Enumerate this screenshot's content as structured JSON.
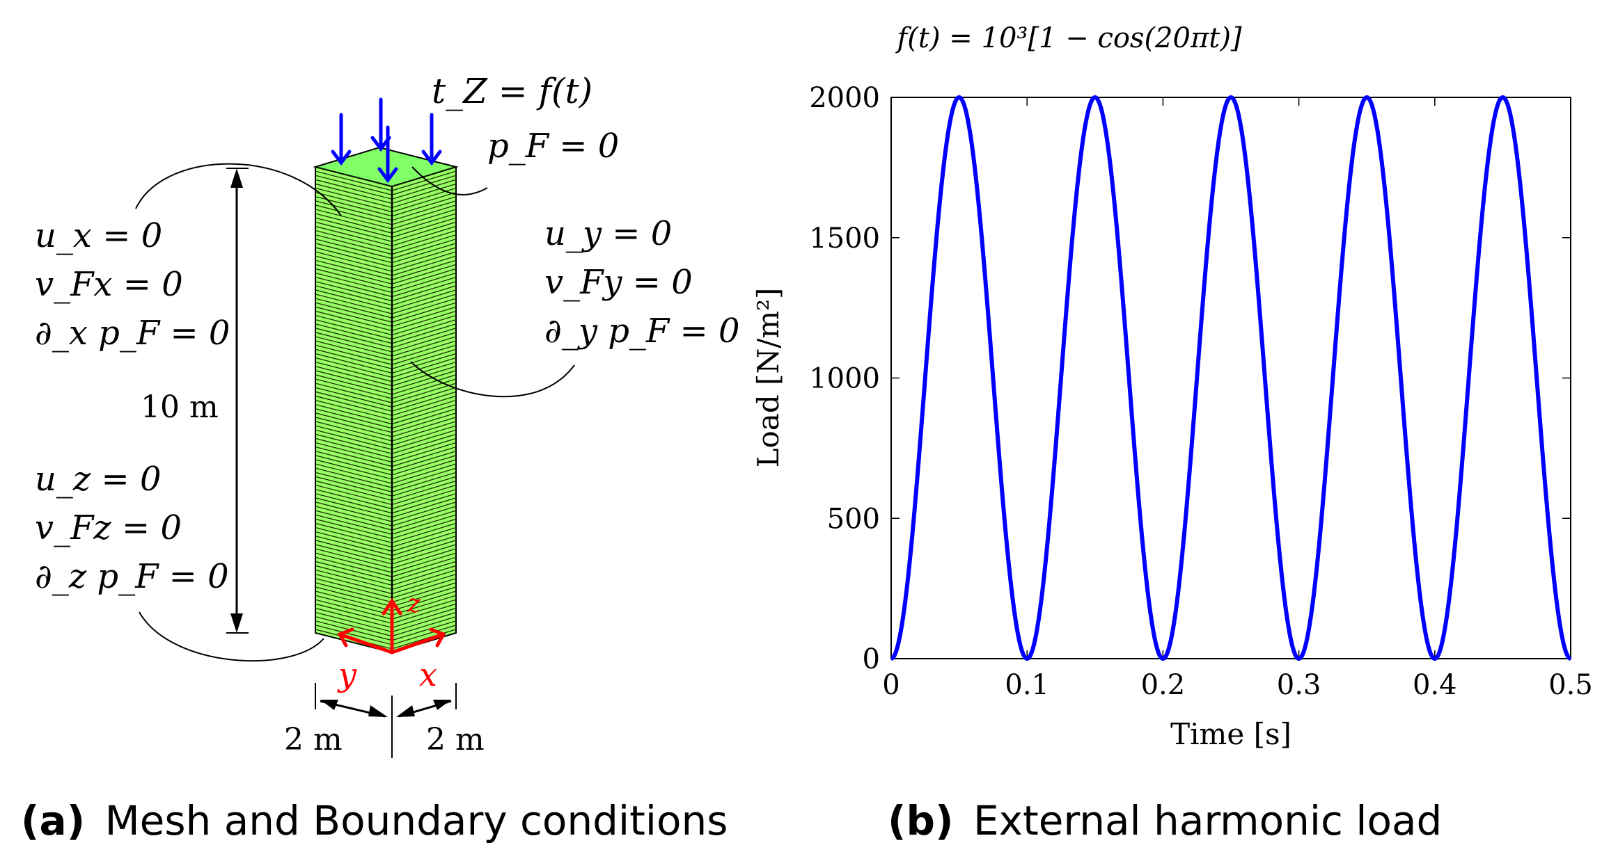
{
  "panel_a": {
    "load_label": "t_Z = f(t)",
    "top_bc": "p_F = 0",
    "left_bc": [
      "u_x = 0",
      "v_Fx = 0",
      "∂_x p_F = 0"
    ],
    "right_bc": [
      "u_y = 0",
      "v_Fy = 0",
      "∂_y p_F = 0"
    ],
    "bottom_bc": [
      "u_z = 0",
      "v_Fz = 0",
      "∂_z p_F = 0"
    ],
    "height_label": "10 m",
    "width_label_left": "2 m",
    "width_label_right": "2 m",
    "axis_x": "x",
    "axis_y": "y",
    "axis_z": "z",
    "colors": {
      "column": "#99ff66",
      "top": "#80ff66",
      "load": "#0000ff",
      "axes": "#ff0000"
    },
    "caption_letter": "(a)",
    "caption_text": "Mesh and Boundary conditions"
  },
  "chart_data": {
    "type": "line",
    "title": "f(t) = 10³[1 − cos(20πt)]",
    "xlabel": "Time [s]",
    "ylabel": "Load [N/m²]",
    "xlim": [
      0,
      0.5
    ],
    "ylim": [
      0,
      2000
    ],
    "xticks": [
      "0",
      "0.1",
      "0.2",
      "0.3",
      "0.4",
      "0.5"
    ],
    "xtick_values": [
      0,
      0.1,
      0.2,
      0.3,
      0.4,
      0.5
    ],
    "yticks": [
      "0",
      "500",
      "1000",
      "1500",
      "2000"
    ],
    "ytick_values": [
      0,
      500,
      1000,
      1500,
      2000
    ],
    "grid": false,
    "series": [
      {
        "name": "f(t)",
        "color": "#0000ff",
        "amplitude": 1000,
        "angular_factor": 20,
        "t_start": 0,
        "t_end": 0.5
      }
    ],
    "caption_letter": "(b)",
    "caption_text": "External harmonic load"
  }
}
